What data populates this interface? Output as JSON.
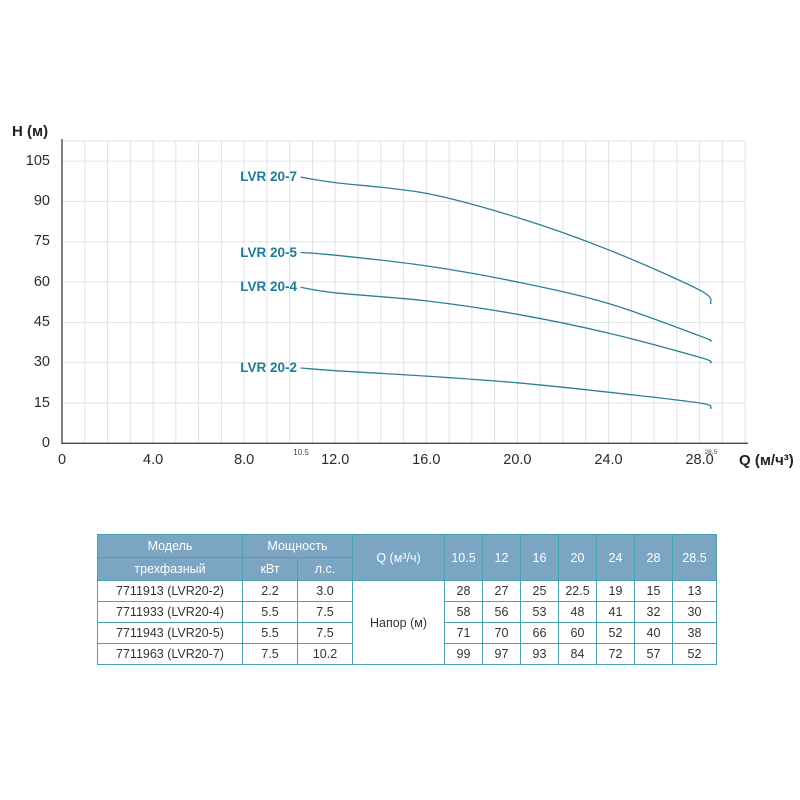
{
  "chart": {
    "ylabel": "H (м)",
    "xlabel": "Q (м/ч³)",
    "ytick_labels": [
      "0",
      "15",
      "30",
      "45",
      "60",
      "75",
      "90",
      "105"
    ],
    "xtick_labels": [
      "0",
      "4.0",
      "8.0",
      "12.0",
      "16.0",
      "20.0",
      "24.0",
      "28.0"
    ],
    "range_markers": [
      "10.5",
      "28.5"
    ],
    "colors": {
      "curve": "#2e7e96",
      "label": "#1d7b97",
      "grid": "#dde3e7",
      "axis": "#4a4a4a"
    }
  },
  "chart_data": {
    "type": "line",
    "title": "",
    "xlabel": "Q (м/ч³)",
    "ylabel": "H (м)",
    "x": [
      10.5,
      12,
      16,
      20,
      24,
      28,
      28.5
    ],
    "xlim": [
      0,
      30
    ],
    "ylim": [
      0,
      112.5
    ],
    "grid": true,
    "legend_position": "inline-left-of-curves",
    "series": [
      {
        "name": "LVR 20-7",
        "values": [
          99,
          97,
          93,
          84,
          72,
          57,
          52
        ]
      },
      {
        "name": "LVR 20-5",
        "values": [
          71,
          70,
          66,
          60,
          52,
          40,
          38
        ]
      },
      {
        "name": "LVR 20-4",
        "values": [
          58,
          56,
          53,
          48,
          41,
          32,
          30
        ]
      },
      {
        "name": "LVR 20-2",
        "values": [
          28,
          27,
          25,
          22.5,
          19,
          15,
          13
        ]
      }
    ]
  },
  "table": {
    "colors": {
      "header_bg": "#7ba5c2",
      "header_text": "#ffffff",
      "border": "#49a2b3",
      "text": "#333333"
    },
    "header": {
      "model": "Модель",
      "model_sub": "трехфазный",
      "power": "Мощность",
      "power_kw": "кВт",
      "power_hp": "л.с.",
      "q": "Q (м³/ч)",
      "q_values": [
        "10.5",
        "12",
        "16",
        "20",
        "24",
        "28",
        "28.5"
      ]
    },
    "napor_label": "Напор (м)",
    "rows": [
      {
        "model": "7711913 (LVR20-2)",
        "kw": "2.2",
        "hp": "3.0",
        "values": [
          "28",
          "27",
          "25",
          "22.5",
          "19",
          "15",
          "13"
        ]
      },
      {
        "model": "7711933 (LVR20-4)",
        "kw": "5.5",
        "hp": "7.5",
        "values": [
          "58",
          "56",
          "53",
          "48",
          "41",
          "32",
          "30"
        ]
      },
      {
        "model": "7711943 (LVR20-5)",
        "kw": "5.5",
        "hp": "7.5",
        "values": [
          "71",
          "70",
          "66",
          "60",
          "52",
          "40",
          "38"
        ]
      },
      {
        "model": "7711963 (LVR20-7)",
        "kw": "7.5",
        "hp": "10.2",
        "values": [
          "99",
          "97",
          "93",
          "84",
          "72",
          "57",
          "52"
        ]
      }
    ]
  }
}
